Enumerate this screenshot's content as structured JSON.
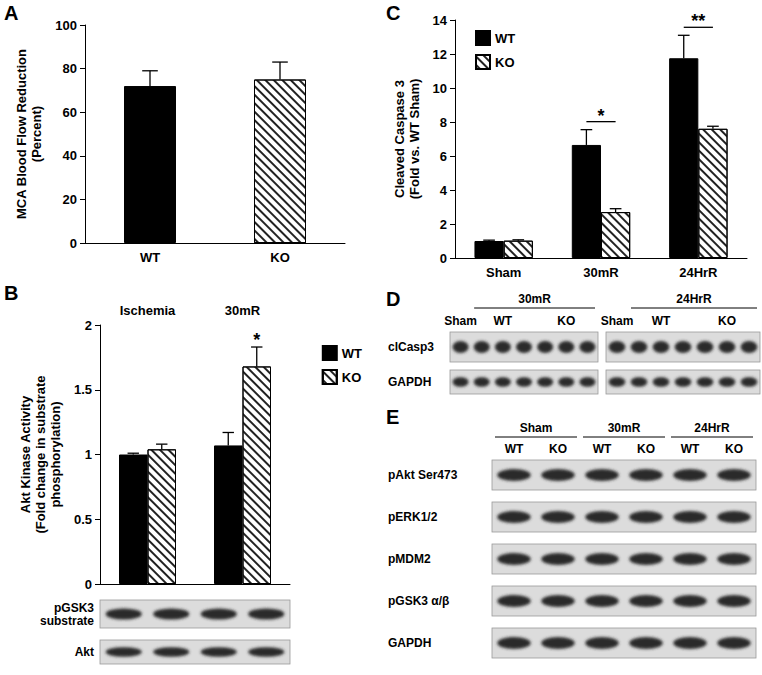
{
  "chart_data": [
    {
      "type": "bar",
      "categories": [
        "WT",
        "KO"
      ],
      "values": [
        72,
        75
      ],
      "errors": [
        7,
        8
      ],
      "colors": [
        "#000000",
        "#ffffff"
      ],
      "ylabel": "MCA Blood Flow Reduction\n(Percent)",
      "ylim": [
        0,
        100
      ],
      "yticks": [
        0,
        20,
        40,
        60,
        80,
        100
      ]
    },
    {
      "type": "bar",
      "categories": [
        "Ischemia",
        "30mR"
      ],
      "series": [
        {
          "name": "WT",
          "color": "#000000",
          "values": [
            1.0,
            1.07
          ],
          "errors": [
            0.01,
            0.1
          ]
        },
        {
          "name": "KO",
          "color": "#ffffff",
          "values": [
            1.04,
            1.68
          ],
          "errors": [
            0.04,
            0.15
          ]
        }
      ],
      "ylabel": "Akt Kinase Activity\n(Fold change in substrate\nphosphorylation)",
      "ylim": [
        0,
        2
      ],
      "yticks": [
        0,
        0.5,
        1,
        1.5,
        2
      ],
      "legend": "right",
      "annotations": [
        {
          "text": "*",
          "category": "30mR",
          "series": "KO"
        }
      ]
    },
    {
      "type": "bar",
      "categories": [
        "Sham",
        "30mR",
        "24HrR"
      ],
      "series": [
        {
          "name": "WT",
          "color": "#000000",
          "values": [
            1.0,
            6.65,
            11.75
          ],
          "errors": [
            0.05,
            0.9,
            1.35
          ]
        },
        {
          "name": "KO",
          "color": "#ffffff",
          "values": [
            1.02,
            2.7,
            7.6
          ],
          "errors": [
            0.05,
            0.2,
            0.15
          ]
        }
      ],
      "ylabel": "Cleaved Caspase 3\n(Fold vs. WT Sham)",
      "ylim": [
        0,
        14
      ],
      "yticks": [
        0,
        2,
        4,
        6,
        8,
        10,
        12,
        14
      ],
      "legend": "top-left",
      "annotations": [
        {
          "text": "*",
          "category": "30mR"
        },
        {
          "text": "**",
          "category": "24HrR"
        }
      ]
    }
  ],
  "panel_labels": [
    "A",
    "B",
    "C",
    "D",
    "E"
  ],
  "blots": {
    "B": {
      "rows": [
        "pGSK3\nsubstrate",
        "Akt"
      ],
      "lanes": 4
    },
    "D": {
      "rows": [
        "clCasp3",
        "GAPDH"
      ],
      "blots": [
        {
          "header": [
            {
              "text": "Sham",
              "lanes": 1
            },
            {
              "text": "30mR",
              "lanes": 6,
              "sub": [
                {
                  "text": "WT",
                  "lanes": 3
                },
                {
                  "text": "KO",
                  "lanes": 3
                }
              ]
            }
          ]
        },
        {
          "header": [
            {
              "text": "Sham",
              "lanes": 1
            },
            {
              "text": "24HrR",
              "lanes": 6,
              "sub": [
                {
                  "text": "WT",
                  "lanes": 3
                },
                {
                  "text": "KO",
                  "lanes": 3
                }
              ]
            }
          ]
        }
      ]
    },
    "E": {
      "rows": [
        "pAkt Ser473",
        "pERK1/2",
        "pMDM2",
        "pGSK3 α/β",
        "GAPDH"
      ],
      "header": [
        {
          "text": "Sham",
          "lanes": 2,
          "sub": [
            {
              "text": "WT",
              "lanes": 1
            },
            {
              "text": "KO",
              "lanes": 1
            }
          ]
        },
        {
          "text": "30mR",
          "lanes": 2,
          "sub": [
            {
              "text": "WT",
              "lanes": 1
            },
            {
              "text": "KO",
              "lanes": 1
            }
          ]
        },
        {
          "text": "24HrR",
          "lanes": 2,
          "sub": [
            {
              "text": "WT",
              "lanes": 1
            },
            {
              "text": "KO",
              "lanes": 1
            }
          ]
        }
      ]
    }
  }
}
